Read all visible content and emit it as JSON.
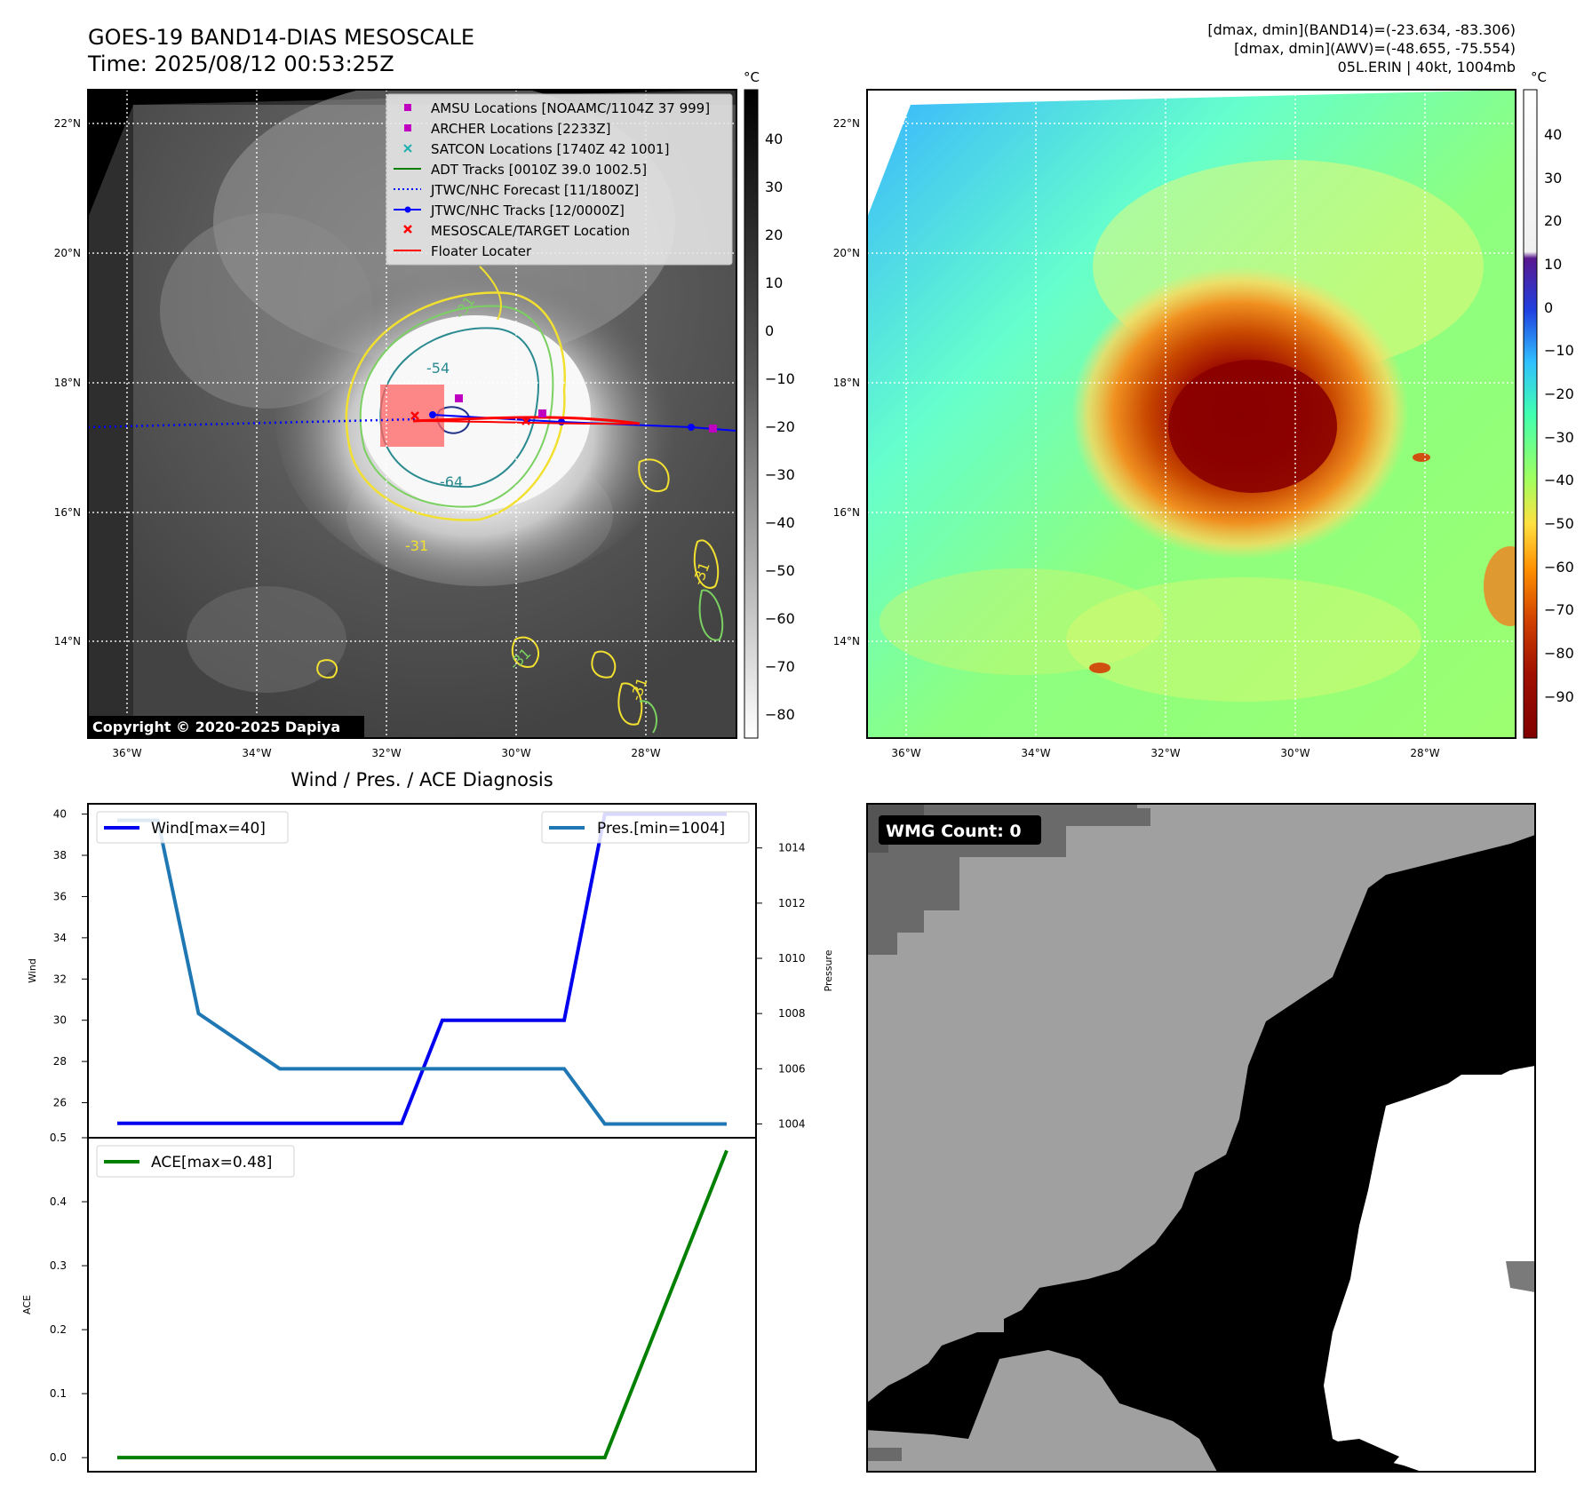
{
  "header": {
    "title_line1": "GOES-19 BAND14-DIAS MESOSCALE",
    "title_line2": "Time: 2025/08/12 00:53:25Z",
    "stat_line1": "[dmax, dmin](BAND14)=(-23.634, -83.306)",
    "stat_line2": "[dmax, dmin](AWV)=(-48.655, -75.554)",
    "stat_line3": "05L.ERIN | 40kt, 1004mb"
  },
  "map_left": {
    "copyright": "Copyright © 2020-2025 Dapiya",
    "lon_ticks": [
      "36°W",
      "34°W",
      "32°W",
      "30°W",
      "28°W"
    ],
    "lat_ticks": [
      "22°N",
      "20°N",
      "18°N",
      "16°N",
      "14°N"
    ],
    "contour_labels": [
      "-31",
      "-54",
      "-64",
      "-31",
      "-31",
      "-31",
      "-31"
    ],
    "colorbar_unit": "°C",
    "colorbar_ticks": [
      "40",
      "30",
      "20",
      "10",
      "0",
      "−10",
      "−20",
      "−30",
      "−40",
      "−50",
      "−60",
      "−70",
      "−80"
    ],
    "legend": [
      {
        "label": "AMSU Locations [NOAAMC/1104Z 37 999]",
        "color": "#c000c0",
        "marker": "square"
      },
      {
        "label": "ARCHER Locations [2233Z]",
        "color": "#c000c0",
        "marker": "square"
      },
      {
        "label": "SATCON Locations [1740Z 42 1001]",
        "color": "#20b0b0",
        "marker": "x"
      },
      {
        "label": "ADT Tracks [0010Z 39.0 1002.5]",
        "color": "#008000",
        "marker": "line"
      },
      {
        "label": "JTWC/NHC Forecast [11/1800Z]",
        "color": "#0000ff",
        "marker": "dotted"
      },
      {
        "label": "JTWC/NHC Tracks [12/0000Z]",
        "color": "#0000ff",
        "marker": "line-dot"
      },
      {
        "label": "MESOSCALE/TARGET Location",
        "color": "#ff0000",
        "marker": "x"
      },
      {
        "label": "Floater Locater",
        "color": "#ff0000",
        "marker": "line"
      }
    ]
  },
  "map_right": {
    "lon_ticks": [
      "36°W",
      "34°W",
      "32°W",
      "30°W",
      "28°W"
    ],
    "lat_ticks": [
      "22°N",
      "20°N",
      "18°N",
      "16°N",
      "14°N"
    ],
    "colorbar_unit": "°C",
    "colorbar_ticks": [
      "40",
      "30",
      "20",
      "10",
      "0",
      "−10",
      "−20",
      "−30",
      "−40",
      "−50",
      "−60",
      "−70",
      "−80",
      "−90"
    ]
  },
  "wmg": {
    "label": "WMG Count: 0"
  },
  "chart_data": [
    {
      "type": "line",
      "title": "Wind / Pres. / ACE Diagnosis",
      "ylabel": "Wind",
      "y2label": "Pressure",
      "x": [
        0,
        1,
        2,
        3,
        4,
        5,
        6,
        7,
        8,
        9,
        10,
        11,
        12,
        13,
        14,
        15
      ],
      "series": [
        {
          "name": "Wind[max=40]",
          "axis": "left",
          "color": "#0000ee",
          "values": [
            25,
            25,
            25,
            25,
            25,
            25,
            25,
            25,
            30,
            30,
            30,
            30,
            40,
            40,
            40,
            40
          ]
        },
        {
          "name": "Pres.[min=1004]",
          "axis": "right",
          "color": "#1f77b4",
          "values": [
            1015,
            1015,
            1008,
            1007,
            1006,
            1006,
            1006,
            1006,
            1006,
            1006,
            1006,
            1006,
            1004,
            1004,
            1004,
            1004
          ]
        }
      ],
      "yticks": [
        "40",
        "38",
        "36",
        "34",
        "32",
        "30",
        "28",
        "26"
      ],
      "y2ticks": [
        "1014",
        "1012",
        "1010",
        "1008",
        "1006",
        "1004"
      ],
      "ylim": [
        24.3,
        40.5
      ],
      "y2lim": [
        1003.5,
        1015.6
      ],
      "legend_left": "top-left",
      "legend_right": "top-right"
    },
    {
      "type": "line",
      "ylabel": "ACE",
      "x": [
        0,
        1,
        2,
        3,
        4,
        5,
        6,
        7,
        8,
        9,
        10,
        11,
        12,
        13,
        14,
        15
      ],
      "series": [
        {
          "name": "ACE[max=0.48]",
          "color": "#008000",
          "values": [
            0,
            0,
            0,
            0,
            0,
            0,
            0,
            0,
            0,
            0,
            0,
            0,
            0,
            0.16,
            0.32,
            0.48
          ]
        }
      ],
      "yticks": [
        "0.5",
        "0.4",
        "0.3",
        "0.2",
        "0.1",
        "0.0"
      ],
      "ylim": [
        -0.022,
        0.5
      ],
      "legend": "top-left"
    }
  ]
}
